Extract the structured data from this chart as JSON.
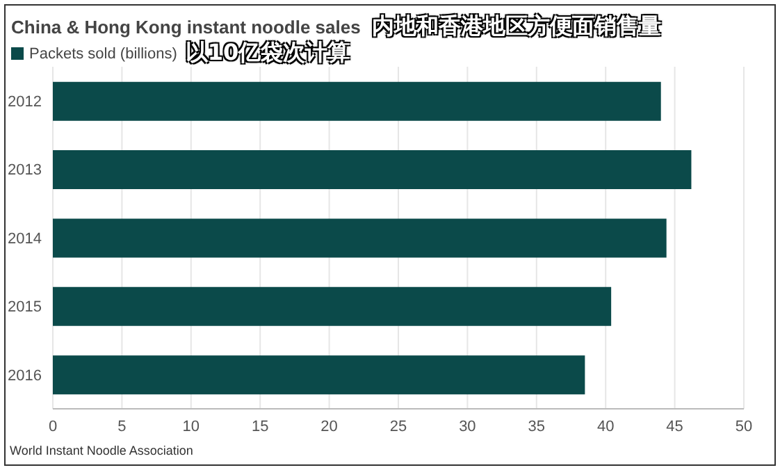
{
  "chart_data": {
    "type": "bar",
    "orientation": "horizontal",
    "title": "China & Hong Kong instant noodle sales",
    "subtitle": "内地和香港地区方便面销售量",
    "annotations": [
      "以10亿袋次计算",
      "World Instant Noodle Association"
    ],
    "categories": [
      "2012",
      "2013",
      "2014",
      "2015",
      "2016"
    ],
    "series": [
      {
        "name": "Packets sold (billions)",
        "color": "#0b4a4a",
        "values": [
          44.0,
          46.2,
          44.4,
          40.4,
          38.5
        ]
      }
    ],
    "xlim": [
      0,
      50
    ],
    "xticks": [
      0,
      5,
      10,
      15,
      20,
      25,
      30,
      35,
      40,
      45,
      50
    ],
    "grid": "x",
    "legend": "top left"
  }
}
